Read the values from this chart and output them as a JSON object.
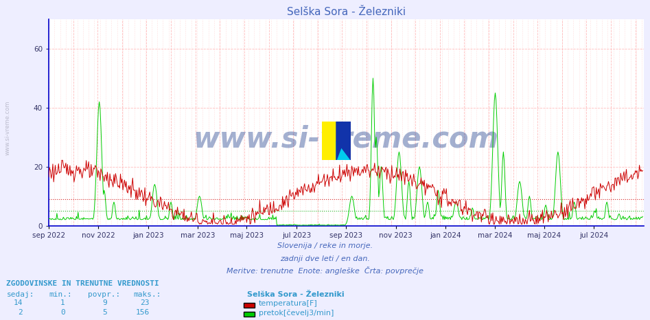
{
  "title": "Selška Sora - Železniki",
  "title_color": "#4466bb",
  "bg_color": "#eeeeff",
  "plot_bg_color": "#ffffff",
  "xlabel_texts": [
    "sep 2022",
    "nov 2022",
    "jan 2023",
    "mar 2023",
    "maj 2023",
    "jul 2023",
    "sep 2023",
    "nov 2023",
    "jan 2024",
    "mar 2024",
    "maj 2024",
    "jul 2024"
  ],
  "month_positions": [
    0,
    61,
    122,
    183,
    243,
    304,
    365,
    426,
    487,
    548,
    608,
    669
  ],
  "ylabel_ticks": [
    0,
    20,
    40,
    60
  ],
  "ylim": [
    0,
    70
  ],
  "xlim": [
    0,
    730
  ],
  "grid_major_color": "#ffbbbb",
  "grid_minor_color": "#ffdddd",
  "hgrid_color": "#ffbbbb",
  "hline_red_y": 9,
  "hline_green_y": 5,
  "hline_red_color": "#cc0000",
  "hline_green_color": "#00aa00",
  "temp_color": "#cc0000",
  "flow_color": "#00cc00",
  "watermark_text": "www.si-vreme.com",
  "watermark_color": "#1a3a8a",
  "watermark_alpha": 0.4,
  "footer_line1": "Slovenija / reke in morje.",
  "footer_line2": "zadnji dve leti / en dan.",
  "footer_line3": "Meritve: trenutne  Enote: angleške  Črta: povprečje",
  "footer_color": "#4466bb",
  "table_header": "ZGODOVINSKE IN TRENUTNE VREDNOSTI",
  "table_col_headers": [
    "sedaj:",
    "min.:",
    "povpr.:",
    "maks.:"
  ],
  "table_temp_values": [
    "14",
    "1",
    "9",
    "23"
  ],
  "table_flow_values": [
    "2",
    "0",
    "5",
    "156"
  ],
  "legend_station": "Selška Sora - Železniki",
  "legend_temp": "temperatura[F]",
  "legend_flow": "pretok[čevelj3/min]",
  "left_label": "www.si-vreme.com",
  "left_label_color": "#bbbbcc",
  "axis_color": "#0000cc",
  "tick_color": "#333366",
  "text_color": "#3399cc"
}
